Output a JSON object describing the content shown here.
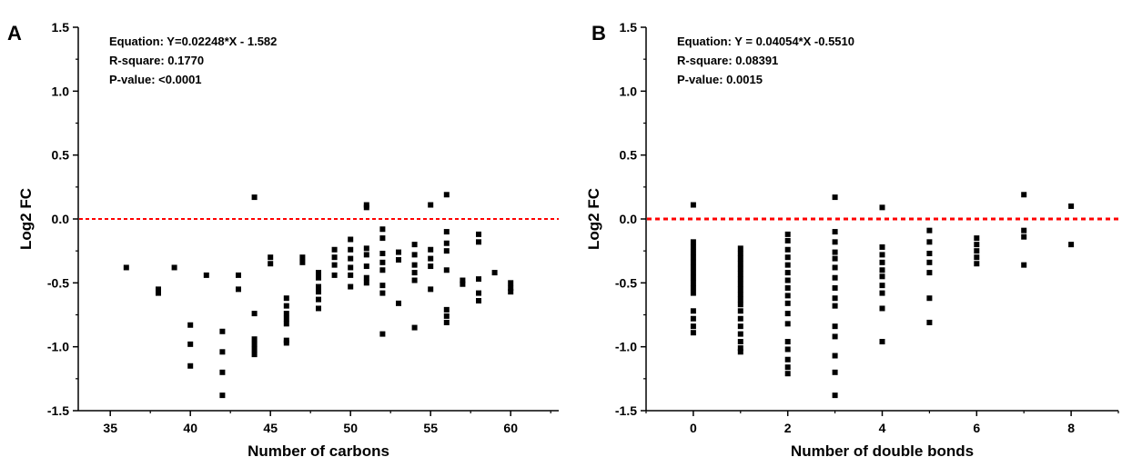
{
  "chart_data": [
    {
      "type": "scatter",
      "panel_label": "A",
      "xlabel": "Number of carbons",
      "ylabel": "Log2 FC",
      "xlim": [
        33,
        63
      ],
      "ylim": [
        -1.5,
        1.5
      ],
      "xticks": [
        35,
        40,
        45,
        50,
        55,
        60
      ],
      "yticks": [
        -1.5,
        -1.0,
        -0.5,
        0.0,
        0.5,
        1.0,
        1.5
      ],
      "ytick_labels": [
        "-1.5",
        "-1.0",
        "-0.5",
        "0.0",
        "0.5",
        "1.0",
        "1.5"
      ],
      "reference_line": {
        "y": 0,
        "color": "#ff0000",
        "style": "dotted"
      },
      "annotations": [
        "Equation: Y=0.02248*X - 1.582",
        "R-square: 0.1770",
        "P-value: <0.0001"
      ],
      "marker_color": "#000000",
      "points": [
        [
          36,
          -0.38
        ],
        [
          38,
          -0.55
        ],
        [
          38,
          -0.58
        ],
        [
          39,
          -0.38
        ],
        [
          40,
          -0.83
        ],
        [
          40,
          -0.98
        ],
        [
          40,
          -1.15
        ],
        [
          41,
          -0.44
        ],
        [
          42,
          -0.88
        ],
        [
          42,
          -1.04
        ],
        [
          42,
          -1.2
        ],
        [
          42,
          -1.38
        ],
        [
          43,
          -0.44
        ],
        [
          43,
          -0.55
        ],
        [
          44,
          0.17
        ],
        [
          44,
          -0.74
        ],
        [
          44,
          -0.94
        ],
        [
          44,
          -0.98
        ],
        [
          44,
          -1.02
        ],
        [
          44,
          -1.06
        ],
        [
          45,
          -0.3
        ],
        [
          45,
          -0.35
        ],
        [
          46,
          -0.62
        ],
        [
          46,
          -0.68
        ],
        [
          46,
          -0.74
        ],
        [
          46,
          -0.78
        ],
        [
          46,
          -0.82
        ],
        [
          46,
          -0.95
        ],
        [
          46,
          -0.97
        ],
        [
          47,
          -0.3
        ],
        [
          47,
          -0.34
        ],
        [
          48,
          -0.42
        ],
        [
          48,
          -0.46
        ],
        [
          48,
          -0.53
        ],
        [
          48,
          -0.57
        ],
        [
          48,
          -0.63
        ],
        [
          48,
          -0.7
        ],
        [
          49,
          -0.24
        ],
        [
          49,
          -0.3
        ],
        [
          49,
          -0.36
        ],
        [
          49,
          -0.44
        ],
        [
          50,
          -0.16
        ],
        [
          50,
          -0.24
        ],
        [
          50,
          -0.31
        ],
        [
          50,
          -0.38
        ],
        [
          50,
          -0.44
        ],
        [
          50,
          -0.53
        ],
        [
          51,
          0.09
        ],
        [
          51,
          0.11
        ],
        [
          51,
          -0.23
        ],
        [
          51,
          -0.28
        ],
        [
          51,
          -0.37
        ],
        [
          51,
          -0.46
        ],
        [
          51,
          -0.5
        ],
        [
          52,
          -0.08
        ],
        [
          52,
          -0.15
        ],
        [
          52,
          -0.27
        ],
        [
          52,
          -0.34
        ],
        [
          52,
          -0.4
        ],
        [
          52,
          -0.52
        ],
        [
          52,
          -0.58
        ],
        [
          52,
          -0.9
        ],
        [
          53,
          -0.26
        ],
        [
          53,
          -0.32
        ],
        [
          53,
          -0.66
        ],
        [
          54,
          -0.2
        ],
        [
          54,
          -0.28
        ],
        [
          54,
          -0.36
        ],
        [
          54,
          -0.42
        ],
        [
          54,
          -0.48
        ],
        [
          54,
          -0.85
        ],
        [
          55,
          0.11
        ],
        [
          55,
          -0.24
        ],
        [
          55,
          -0.31
        ],
        [
          55,
          -0.37
        ],
        [
          55,
          -0.55
        ],
        [
          56,
          0.19
        ],
        [
          56,
          -0.1
        ],
        [
          56,
          -0.19
        ],
        [
          56,
          -0.25
        ],
        [
          56,
          -0.4
        ],
        [
          56,
          -0.71
        ],
        [
          56,
          -0.76
        ],
        [
          56,
          -0.81
        ],
        [
          57,
          -0.48
        ],
        [
          57,
          -0.51
        ],
        [
          58,
          -0.12
        ],
        [
          58,
          -0.18
        ],
        [
          58,
          -0.47
        ],
        [
          58,
          -0.58
        ],
        [
          58,
          -0.64
        ],
        [
          59,
          -0.42
        ],
        [
          60,
          -0.5
        ],
        [
          60,
          -0.54
        ],
        [
          60,
          -0.57
        ]
      ]
    },
    {
      "type": "scatter",
      "panel_label": "B",
      "xlabel": "Number of double bonds",
      "ylabel": "Log2 FC",
      "xlim": [
        -1,
        9
      ],
      "ylim": [
        -1.5,
        1.5
      ],
      "xticks": [
        0,
        2,
        4,
        6,
        8
      ],
      "yticks": [
        -1.5,
        -1.0,
        -0.5,
        0.0,
        0.5,
        1.0,
        1.5
      ],
      "ytick_labels": [
        "-1.5",
        "-1.0",
        "-0.5",
        "0.0",
        "0.5",
        "1.0",
        "1.5"
      ],
      "reference_line": {
        "y": 0,
        "color": "#ff0000",
        "style": "dotted"
      },
      "annotations": [
        "Equation: Y = 0.04054*X -0.5510",
        "R-square: 0.08391",
        "P-value: 0.0015"
      ],
      "marker_color": "#000000",
      "points": [
        [
          0,
          0.11
        ],
        [
          0,
          -0.18
        ],
        [
          0,
          -0.22
        ],
        [
          0,
          -0.26
        ],
        [
          0,
          -0.3
        ],
        [
          0,
          -0.34
        ],
        [
          0,
          -0.38
        ],
        [
          0,
          -0.42
        ],
        [
          0,
          -0.46
        ],
        [
          0,
          -0.5
        ],
        [
          0,
          -0.54
        ],
        [
          0,
          -0.58
        ],
        [
          0,
          -0.72
        ],
        [
          0,
          -0.78
        ],
        [
          0,
          -0.84
        ],
        [
          0,
          -0.89
        ],
        [
          1,
          -0.23
        ],
        [
          1,
          -0.27
        ],
        [
          1,
          -0.31
        ],
        [
          1,
          -0.35
        ],
        [
          1,
          -0.39
        ],
        [
          1,
          -0.43
        ],
        [
          1,
          -0.47
        ],
        [
          1,
          -0.51
        ],
        [
          1,
          -0.55
        ],
        [
          1,
          -0.59
        ],
        [
          1,
          -0.63
        ],
        [
          1,
          -0.67
        ],
        [
          1,
          -0.72
        ],
        [
          1,
          -0.78
        ],
        [
          1,
          -0.84
        ],
        [
          1,
          -0.9
        ],
        [
          1,
          -0.96
        ],
        [
          1,
          -1.01
        ],
        [
          1,
          -1.04
        ],
        [
          2,
          -0.12
        ],
        [
          2,
          -0.17
        ],
        [
          2,
          -0.24
        ],
        [
          2,
          -0.3
        ],
        [
          2,
          -0.36
        ],
        [
          2,
          -0.42
        ],
        [
          2,
          -0.48
        ],
        [
          2,
          -0.54
        ],
        [
          2,
          -0.6
        ],
        [
          2,
          -0.66
        ],
        [
          2,
          -0.74
        ],
        [
          2,
          -0.82
        ],
        [
          2,
          -0.96
        ],
        [
          2,
          -1.02
        ],
        [
          2,
          -1.1
        ],
        [
          2,
          -1.16
        ],
        [
          2,
          -1.21
        ],
        [
          3,
          0.17
        ],
        [
          3,
          -0.1
        ],
        [
          3,
          -0.18
        ],
        [
          3,
          -0.26
        ],
        [
          3,
          -0.31
        ],
        [
          3,
          -0.38
        ],
        [
          3,
          -0.46
        ],
        [
          3,
          -0.54
        ],
        [
          3,
          -0.62
        ],
        [
          3,
          -0.68
        ],
        [
          3,
          -0.84
        ],
        [
          3,
          -0.92
        ],
        [
          3,
          -1.07
        ],
        [
          3,
          -1.2
        ],
        [
          3,
          -1.38
        ],
        [
          4,
          0.09
        ],
        [
          4,
          -0.22
        ],
        [
          4,
          -0.28
        ],
        [
          4,
          -0.34
        ],
        [
          4,
          -0.4
        ],
        [
          4,
          -0.45
        ],
        [
          4,
          -0.52
        ],
        [
          4,
          -0.58
        ],
        [
          4,
          -0.7
        ],
        [
          4,
          -0.96
        ],
        [
          5,
          -0.09
        ],
        [
          5,
          -0.18
        ],
        [
          5,
          -0.27
        ],
        [
          5,
          -0.34
        ],
        [
          5,
          -0.42
        ],
        [
          5,
          -0.62
        ],
        [
          5,
          -0.81
        ],
        [
          6,
          -0.15
        ],
        [
          6,
          -0.2
        ],
        [
          6,
          -0.25
        ],
        [
          6,
          -0.3
        ],
        [
          6,
          -0.35
        ],
        [
          7,
          0.19
        ],
        [
          7,
          -0.09
        ],
        [
          7,
          -0.14
        ],
        [
          7,
          -0.36
        ],
        [
          8,
          0.1
        ],
        [
          8,
          -0.2
        ]
      ]
    }
  ]
}
